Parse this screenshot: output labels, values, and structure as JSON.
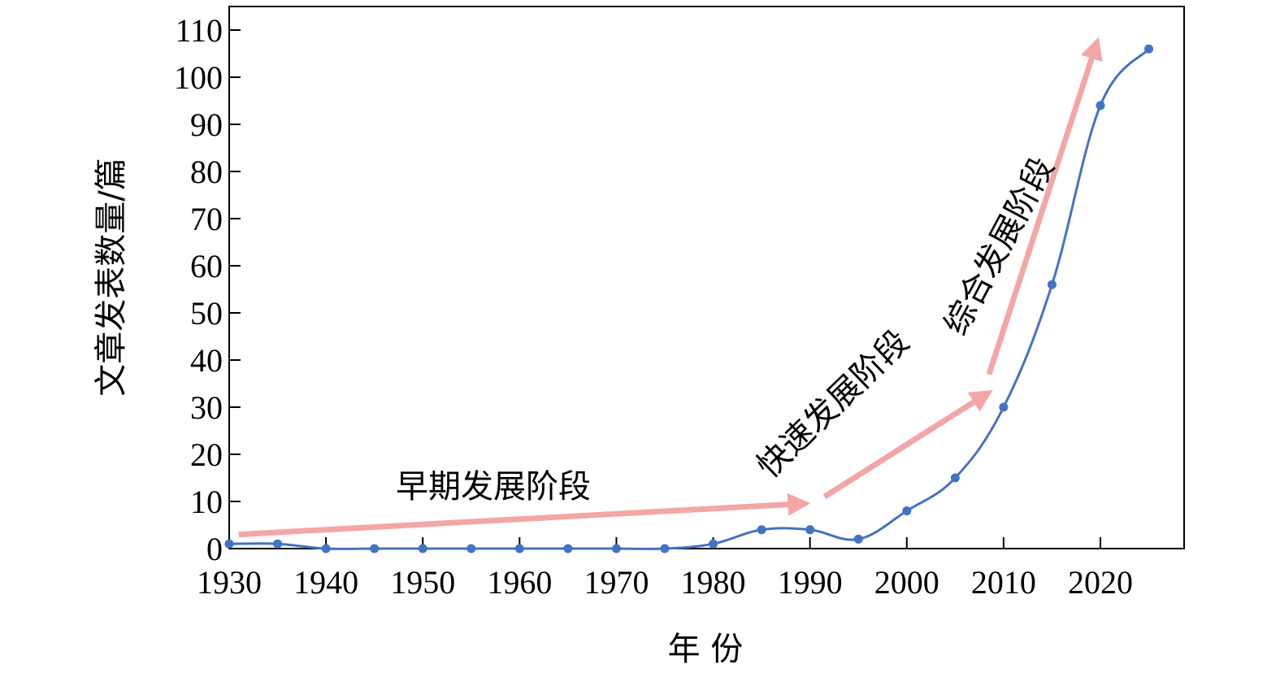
{
  "chart_data": {
    "type": "line",
    "title": "",
    "xlabel": "年 份",
    "ylabel": "文章发表数量/篇",
    "xlim": [
      1930,
      2028
    ],
    "ylim": [
      0,
      110
    ],
    "xticks": [
      1930,
      1940,
      1950,
      1960,
      1970,
      1980,
      1990,
      2000,
      2010,
      2020
    ],
    "yticks": [
      0,
      10,
      20,
      30,
      40,
      50,
      60,
      70,
      80,
      90,
      100,
      110
    ],
    "grid": false,
    "legend": "none",
    "series": [
      {
        "color": "#4472c4",
        "x": [
          1930,
          1935,
          1940,
          1945,
          1950,
          1955,
          1960,
          1965,
          1970,
          1975,
          1980,
          1985,
          1990,
          1995,
          2000,
          2005,
          2010,
          2015,
          2020,
          2025
        ],
        "y": [
          1,
          1,
          0,
          0,
          0,
          0,
          0,
          0,
          0,
          0,
          1,
          4,
          4,
          2,
          8,
          15,
          30,
          56,
          94,
          106
        ]
      }
    ],
    "annotations": [
      {
        "text": "早期发展阶段",
        "arrow_start": [
          1931,
          3
        ],
        "arrow_end": [
          1989,
          9.5
        ]
      },
      {
        "text": "快速发展阶段",
        "arrow_start": [
          1991.5,
          11
        ],
        "arrow_end": [
          2008,
          32.5
        ]
      },
      {
        "text": "综合发展阶段",
        "arrow_start": [
          2008.5,
          37
        ],
        "arrow_end": [
          2019.5,
          106.5
        ]
      }
    ],
    "arrow_color": "#f4a6a6"
  }
}
